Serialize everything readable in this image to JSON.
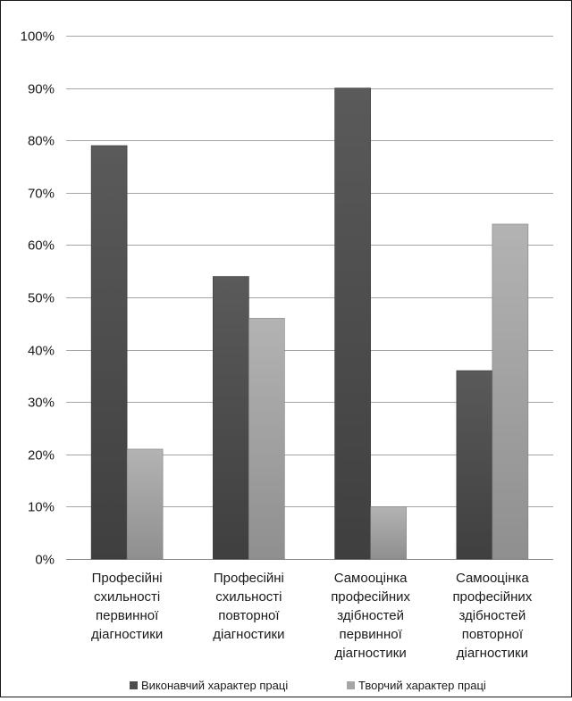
{
  "chart_data": {
    "type": "bar",
    "title": "",
    "xlabel": "",
    "ylabel": "",
    "ylim": [
      0,
      100
    ],
    "y_tick_values": [
      0,
      10,
      20,
      30,
      40,
      50,
      60,
      70,
      80,
      90,
      100
    ],
    "y_tick_labels": [
      "0%",
      "10%",
      "20%",
      "30%",
      "40%",
      "50%",
      "60%",
      "70%",
      "80%",
      "90%",
      "100%"
    ],
    "grid": true,
    "legend_position": "bottom",
    "categories": [
      [
        "Професійні",
        "схильності",
        "первинної",
        "діагностики"
      ],
      [
        "Професійні",
        "схильності",
        "повторної",
        "діагностики"
      ],
      [
        "Самооцінка",
        "професійних",
        "здібностей",
        "первинної",
        "діагностики"
      ],
      [
        "Самооцінка",
        "професійних",
        "здібностей",
        "повторної",
        "діагностики"
      ]
    ],
    "series": [
      {
        "name": "Виконавчий характер праці",
        "values": [
          79,
          54,
          90,
          36
        ],
        "color": "#4d4d4d"
      },
      {
        "name": "Творчий характер праці",
        "values": [
          21,
          46,
          10,
          64
        ],
        "color": "#a6a6a6"
      }
    ]
  }
}
